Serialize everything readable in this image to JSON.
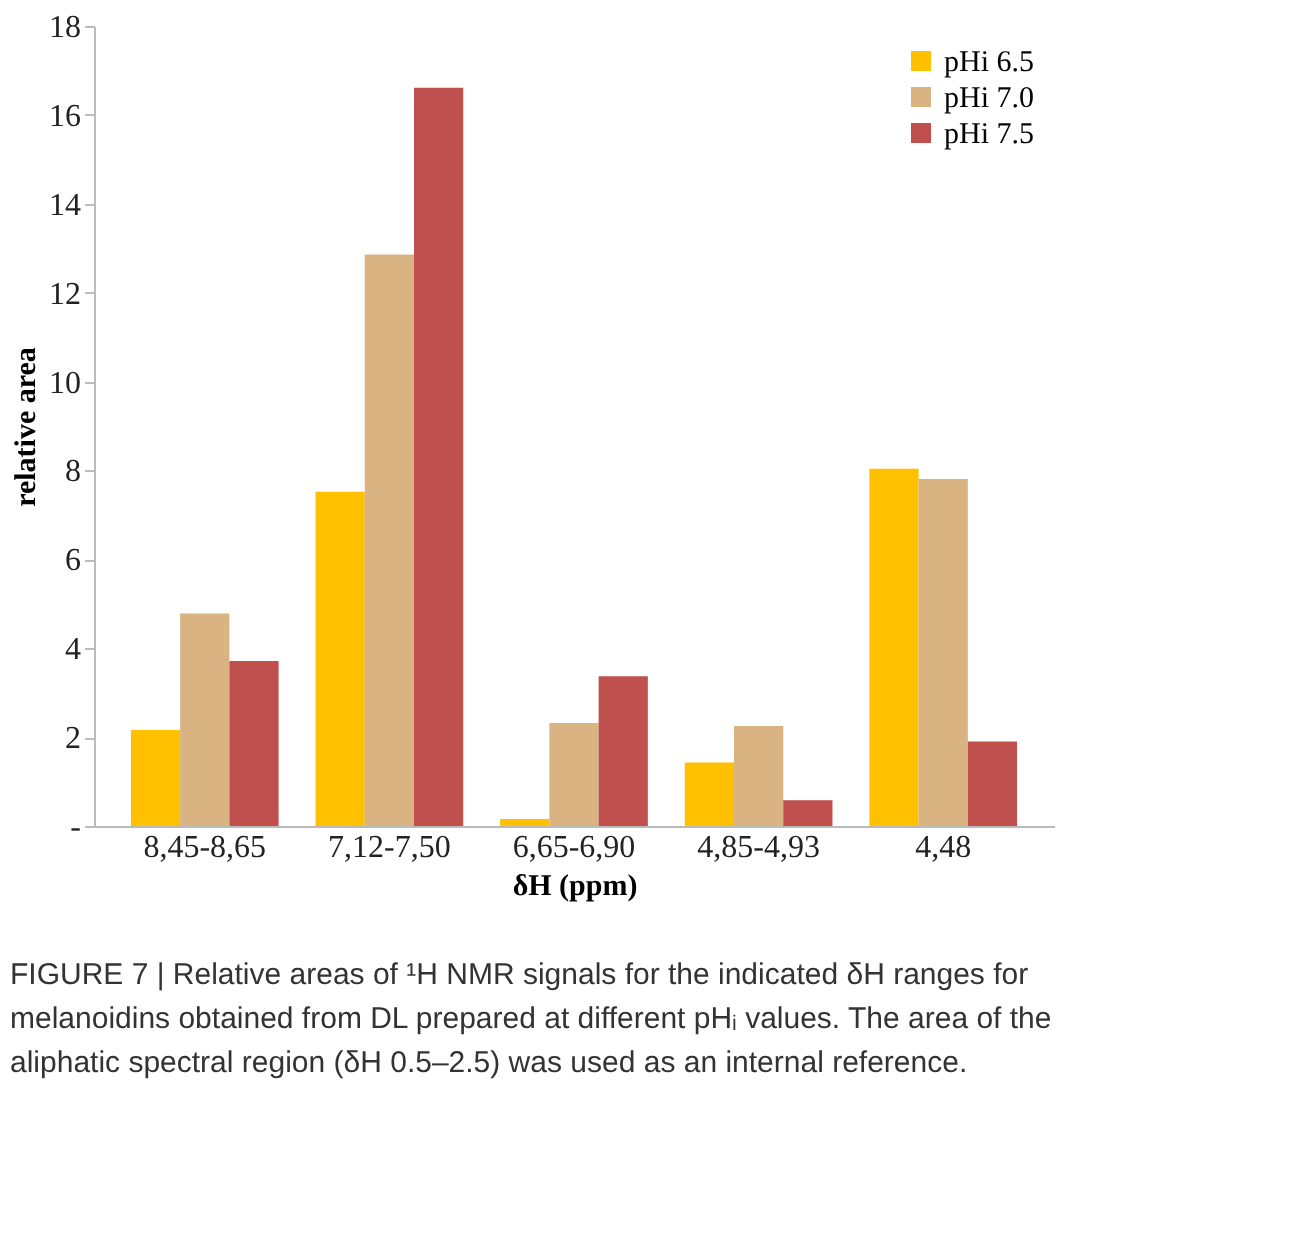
{
  "chart_data": {
    "type": "bar",
    "xlabel": "δH (ppm)",
    "ylabel": "relative area",
    "categories": [
      "8,45-8,65",
      "7,12-7,50",
      "6,65-6,90",
      "4,85-4,93",
      "4,48"
    ],
    "series": [
      {
        "name": "pHi 6.5",
        "color": "#ffc000",
        "values": [
          2.16,
          7.52,
          0.16,
          1.43,
          8.04
        ]
      },
      {
        "name": "pHi 7.0",
        "color": "#d9b382",
        "values": [
          4.78,
          12.86,
          2.32,
          2.25,
          7.81
        ]
      },
      {
        "name": "pHi 7.5",
        "color": "#c0504d",
        "values": [
          3.71,
          16.61,
          3.37,
          0.58,
          1.9
        ]
      }
    ],
    "ylim": [
      0,
      18
    ],
    "yticks": [
      {
        "value": 0,
        "label": "-"
      },
      2,
      4,
      6,
      8,
      10,
      12,
      14,
      16,
      18
    ],
    "grid": false,
    "legend": "top right",
    "annotations": [
      "FIGURE 7 | Relative areas of ¹H NMR signals for the indicated δH ranges for melanoidins obtained from DL prepared at different pHᵢ values. The area of the aliphatic spectral region (δH 0.5–2.5) was used as an internal reference."
    ]
  }
}
